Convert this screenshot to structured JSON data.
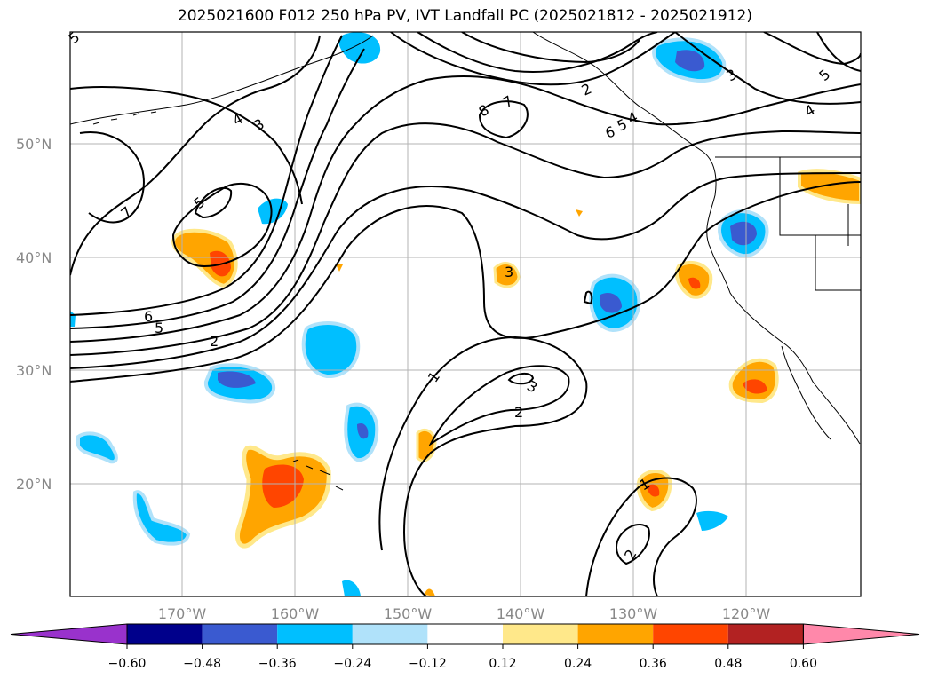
{
  "title": "2025021600 F012 250 hPa PV, IVT Landfall PC (2025021812 - 2025021912)",
  "lat_labels": [
    "50°N",
    "40°N",
    "30°N",
    "20°N"
  ],
  "lon_labels": [
    "170°W",
    "160°W",
    "150°W",
    "140°W",
    "130°W",
    "120°W"
  ],
  "colorbar": {
    "ticks": [
      "−0.60",
      "−0.48",
      "−0.36",
      "−0.24",
      "−0.12",
      "0.12",
      "0.24",
      "0.36",
      "0.48",
      "0.60"
    ],
    "colors": [
      "#9932cc",
      "#00008b",
      "#3a5ad0",
      "#00bfff",
      "#b0e2fa",
      "#ffffff",
      "#ffe88a",
      "#ffa500",
      "#ff4500",
      "#b22222",
      "#ff88aa"
    ]
  },
  "contour_labels": [
    {
      "text": "5"
    },
    {
      "text": "4"
    },
    {
      "text": "3"
    },
    {
      "text": "7"
    },
    {
      "text": "5"
    },
    {
      "text": "6"
    },
    {
      "text": "5"
    },
    {
      "text": "2"
    },
    {
      "text": "8"
    },
    {
      "text": "7"
    },
    {
      "text": "2"
    },
    {
      "text": "5"
    },
    {
      "text": "4"
    },
    {
      "text": "6"
    },
    {
      "text": "3"
    },
    {
      "text": "5"
    },
    {
      "text": "4"
    },
    {
      "text": "3"
    },
    {
      "text": "1"
    },
    {
      "text": "3"
    },
    {
      "text": "2"
    },
    {
      "text": "1"
    },
    {
      "text": "2"
    }
  ]
}
